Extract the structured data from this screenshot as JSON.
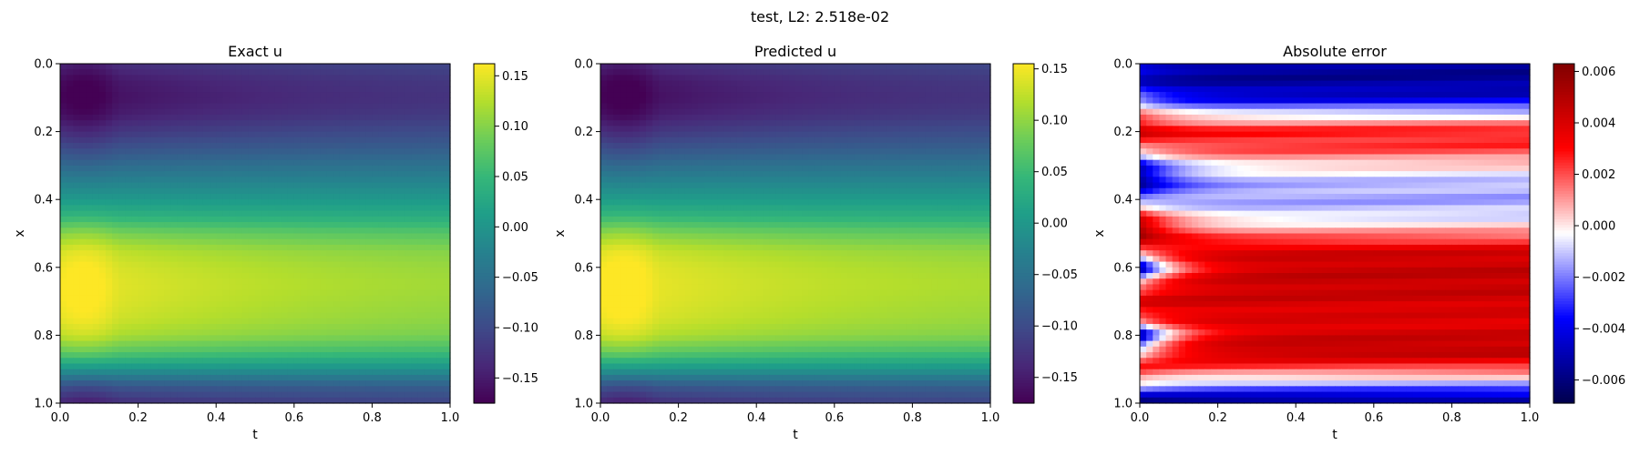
{
  "figure": {
    "suptitle": "test, L2: 2.518e-02"
  },
  "chart_data": [
    {
      "type": "heatmap",
      "title": "Exact u",
      "xlabel": "t",
      "ylabel": "x",
      "xlim": [
        0.0,
        1.0
      ],
      "ylim": [
        1.0,
        0.0
      ],
      "x_ticks": [
        "0.0",
        "0.2",
        "0.4",
        "0.6",
        "0.8",
        "1.0"
      ],
      "y_ticks": [
        "0.0",
        "0.2",
        "0.4",
        "0.6",
        "0.8",
        "1.0"
      ],
      "colormap": "viridis",
      "colorbar": {
        "vmin": -0.175,
        "vmax": 0.162,
        "ticks": [
          0.15,
          0.1,
          0.05,
          0.0,
          -0.05,
          -0.1,
          -0.15
        ],
        "tick_labels": [
          "0.15",
          "0.10",
          "0.05",
          "0.00",
          "−0.05",
          "−0.10",
          "−0.15"
        ]
      },
      "profile": {
        "x": [
          0.0,
          0.05,
          0.1,
          0.15,
          0.2,
          0.25,
          0.3,
          0.35,
          0.4,
          0.45,
          0.5,
          0.55,
          0.6,
          0.65,
          0.7,
          0.75,
          0.8,
          0.85,
          0.9,
          0.95,
          1.0
        ],
        "u_t0": [
          -0.14,
          -0.165,
          -0.172,
          -0.16,
          -0.13,
          -0.095,
          -0.06,
          -0.025,
          0.005,
          0.045,
          0.1,
          0.14,
          0.155,
          0.16,
          0.158,
          0.15,
          0.13,
          0.08,
          0.0,
          -0.09,
          -0.14
        ],
        "u_t1": [
          -0.095,
          -0.11,
          -0.115,
          -0.108,
          -0.09,
          -0.07,
          -0.045,
          -0.02,
          0.005,
          0.03,
          0.065,
          0.09,
          0.1,
          0.105,
          0.1,
          0.095,
          0.085,
          0.05,
          -0.005,
          -0.07,
          -0.1
        ]
      }
    },
    {
      "type": "heatmap",
      "title": "Predicted u",
      "xlabel": "t",
      "ylabel": "x",
      "xlim": [
        0.0,
        1.0
      ],
      "ylim": [
        1.0,
        0.0
      ],
      "x_ticks": [
        "0.0",
        "0.2",
        "0.4",
        "0.6",
        "0.8",
        "1.0"
      ],
      "y_ticks": [
        "0.0",
        "0.2",
        "0.4",
        "0.6",
        "0.8",
        "1.0"
      ],
      "colormap": "viridis",
      "colorbar": {
        "vmin": -0.175,
        "vmax": 0.155,
        "ticks": [
          0.15,
          0.1,
          0.05,
          0.0,
          -0.05,
          -0.1,
          -0.15
        ],
        "tick_labels": [
          "0.15",
          "0.10",
          "0.05",
          "0.00",
          "−0.05",
          "−0.10",
          "−0.15"
        ]
      },
      "profile": {
        "x": [
          0.0,
          0.05,
          0.1,
          0.15,
          0.2,
          0.25,
          0.3,
          0.35,
          0.4,
          0.45,
          0.5,
          0.55,
          0.6,
          0.65,
          0.7,
          0.75,
          0.8,
          0.85,
          0.9,
          0.95,
          1.0
        ],
        "u_t0": [
          -0.14,
          -0.167,
          -0.173,
          -0.16,
          -0.13,
          -0.095,
          -0.06,
          -0.025,
          0.005,
          0.045,
          0.098,
          0.138,
          0.152,
          0.155,
          0.154,
          0.147,
          0.127,
          0.078,
          0.0,
          -0.09,
          -0.14
        ],
        "u_t1": [
          -0.095,
          -0.11,
          -0.115,
          -0.108,
          -0.09,
          -0.07,
          -0.045,
          -0.02,
          0.005,
          0.03,
          0.065,
          0.09,
          0.1,
          0.105,
          0.1,
          0.095,
          0.085,
          0.05,
          -0.005,
          -0.07,
          -0.1
        ]
      }
    },
    {
      "type": "heatmap",
      "title": "Absolute error",
      "xlabel": "t",
      "ylabel": "x",
      "xlim": [
        0.0,
        1.0
      ],
      "ylim": [
        1.0,
        0.0
      ],
      "x_ticks": [
        "0.0",
        "0.2",
        "0.4",
        "0.6",
        "0.8",
        "1.0"
      ],
      "y_ticks": [
        "0.0",
        "0.2",
        "0.4",
        "0.6",
        "0.8",
        "1.0"
      ],
      "colormap": "seismic",
      "colorbar": {
        "vmin": -0.0069,
        "vmax": 0.0063,
        "ticks": [
          0.006,
          0.004,
          0.002,
          0.0,
          -0.002,
          -0.004,
          -0.006
        ],
        "tick_labels": [
          "0.006",
          "0.004",
          "0.002",
          "0.000",
          "−0.002",
          "−0.004",
          "−0.006"
        ]
      },
      "profile": {
        "x": [
          0.0,
          0.05,
          0.1,
          0.15,
          0.2,
          0.25,
          0.3,
          0.35,
          0.4,
          0.45,
          0.5,
          0.55,
          0.6,
          0.65,
          0.7,
          0.75,
          0.8,
          0.85,
          0.9,
          0.95,
          1.0
        ],
        "err_late": [
          -0.0055,
          -0.0055,
          -0.0045,
          -0.0005,
          0.0028,
          0.0022,
          0.0002,
          -0.0012,
          -0.0015,
          -0.0008,
          0.0012,
          0.004,
          0.0045,
          0.0045,
          0.0042,
          0.0038,
          0.0042,
          0.0048,
          0.002,
          -0.002,
          -0.0062
        ],
        "err_early": [
          -0.004,
          -0.0048,
          -0.002,
          0.0015,
          0.0045,
          0.001,
          -0.0045,
          -0.006,
          -0.002,
          0.0035,
          0.006,
          0.002,
          -0.006,
          0.001,
          0.004,
          0.002,
          -0.006,
          0.0,
          0.003,
          -0.001,
          -0.0068
        ]
      }
    }
  ]
}
